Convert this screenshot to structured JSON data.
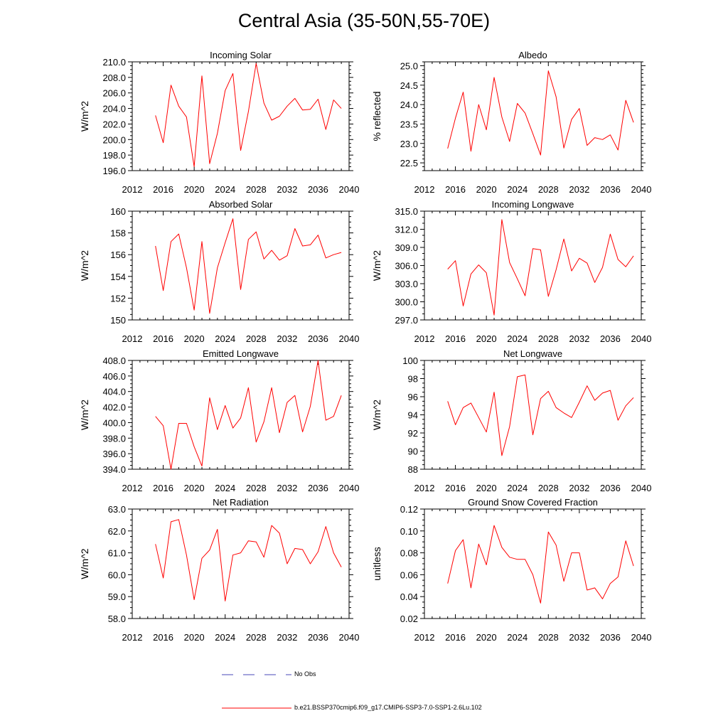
{
  "title": "Central Asia (35-50N,55-70E)",
  "legend": [
    {
      "label": "No Obs",
      "color": "#4a4ab8",
      "style": "dashed"
    },
    {
      "label": "b.e21.BSSP370cmip6.f09_g17.CMIP6-SSP3-7.0-SSP1-2.6Lu.102",
      "color": "#ff0000",
      "style": "solid"
    }
  ],
  "chart_data": [
    {
      "type": "line",
      "title": "Incoming Solar",
      "ylabel": "W/m^2",
      "xlim": [
        2012,
        2040
      ],
      "ylim": [
        196,
        210
      ],
      "xticks": [
        "2012",
        "2016",
        "2020",
        "2024",
        "2028",
        "2032",
        "2036",
        "2040"
      ],
      "xtick_values": [
        2012,
        2016,
        2020,
        2024,
        2028,
        2032,
        2036,
        2040
      ],
      "yticks": [
        "196.0",
        "198.0",
        "200.0",
        "202.0",
        "204.0",
        "206.0",
        "208.0",
        "210.0"
      ],
      "ytick_values": [
        196,
        198,
        200,
        202,
        204,
        206,
        208,
        210
      ],
      "ymajor_step": 2,
      "yminor_step": 0.5,
      "x": [
        2015,
        2016,
        2017,
        2018,
        2019,
        2020,
        2021,
        2022,
        2023,
        2024,
        2025,
        2026,
        2027,
        2028,
        2029,
        2030,
        2031,
        2032,
        2033,
        2034,
        2035,
        2036,
        2037,
        2038,
        2039
      ],
      "series": [
        {
          "name": "b.e21.BSSP370cmip6.f09_g17.CMIP6-SSP3-7.0-SSP1-2.6Lu.102",
          "color": "#ff0000",
          "values": [
            203.1,
            199.6,
            207.0,
            204.3,
            202.9,
            196.5,
            208.2,
            196.9,
            200.8,
            206.3,
            208.5,
            198.6,
            203.6,
            209.8,
            204.7,
            202.5,
            203.0,
            204.3,
            205.3,
            203.8,
            203.9,
            205.2,
            201.3,
            205.1,
            204.0
          ]
        }
      ]
    },
    {
      "type": "line",
      "title": "Albedo",
      "ylabel": "% reflected",
      "xlim": [
        2012,
        2040
      ],
      "ylim": [
        22.3,
        25.1
      ],
      "xticks": [
        "2012",
        "2016",
        "2020",
        "2024",
        "2028",
        "2032",
        "2036",
        "2040"
      ],
      "xtick_values": [
        2012,
        2016,
        2020,
        2024,
        2028,
        2032,
        2036,
        2040
      ],
      "yticks": [
        "22.5",
        "23.0",
        "23.5",
        "24.0",
        "24.5",
        "25.0"
      ],
      "ytick_values": [
        22.5,
        23.0,
        23.5,
        24.0,
        24.5,
        25.0
      ],
      "ymajor_step": 0.5,
      "yminor_step": 0.1,
      "x": [
        2015,
        2016,
        2017,
        2018,
        2019,
        2020,
        2021,
        2022,
        2023,
        2024,
        2025,
        2026,
        2027,
        2028,
        2029,
        2030,
        2031,
        2032,
        2033,
        2034,
        2035,
        2036,
        2037,
        2038,
        2039
      ],
      "series": [
        {
          "name": "b.e21.BSSP370cmip6.f09_g17.CMIP6-SSP3-7.0-SSP1-2.6Lu.102",
          "color": "#ff0000",
          "values": [
            22.87,
            23.65,
            24.32,
            22.8,
            24.0,
            23.35,
            24.7,
            23.68,
            23.05,
            24.03,
            23.78,
            23.25,
            22.7,
            24.87,
            24.2,
            22.88,
            23.62,
            23.9,
            22.95,
            23.15,
            23.1,
            23.22,
            22.83,
            24.11,
            23.54
          ]
        }
      ]
    },
    {
      "type": "line",
      "title": "Absorbed Solar",
      "ylabel": "W/m^2",
      "xlim": [
        2012,
        2040
      ],
      "ylim": [
        150,
        160
      ],
      "xticks": [
        "2012",
        "2016",
        "2020",
        "2024",
        "2028",
        "2032",
        "2036",
        "2040"
      ],
      "xtick_values": [
        2012,
        2016,
        2020,
        2024,
        2028,
        2032,
        2036,
        2040
      ],
      "yticks": [
        "150",
        "152",
        "154",
        "156",
        "158",
        "160"
      ],
      "ytick_values": [
        150,
        152,
        154,
        156,
        158,
        160
      ],
      "ymajor_step": 2,
      "yminor_step": 0.5,
      "x": [
        2015,
        2016,
        2017,
        2018,
        2019,
        2020,
        2021,
        2022,
        2023,
        2024,
        2025,
        2026,
        2027,
        2028,
        2029,
        2030,
        2031,
        2032,
        2033,
        2034,
        2035,
        2036,
        2037,
        2038,
        2039
      ],
      "series": [
        {
          "name": "b.e21.BSSP370cmip6.f09_g17.CMIP6-SSP3-7.0-SSP1-2.6Lu.102",
          "color": "#ff0000",
          "values": [
            156.8,
            152.7,
            157.2,
            157.9,
            154.8,
            150.9,
            157.2,
            150.6,
            154.8,
            157.1,
            159.3,
            152.8,
            157.4,
            158.1,
            155.6,
            156.4,
            155.5,
            155.9,
            158.4,
            156.8,
            156.9,
            157.8,
            155.7,
            156.0,
            156.2
          ]
        }
      ]
    },
    {
      "type": "line",
      "title": "Incoming Longwave",
      "ylabel": "W/m^2",
      "xlim": [
        2012,
        2040
      ],
      "ylim": [
        297,
        315
      ],
      "xticks": [
        "2012",
        "2016",
        "2020",
        "2024",
        "2028",
        "2032",
        "2036",
        "2040"
      ],
      "xtick_values": [
        2012,
        2016,
        2020,
        2024,
        2028,
        2032,
        2036,
        2040
      ],
      "yticks": [
        "297.0",
        "300.0",
        "303.0",
        "306.0",
        "309.0",
        "312.0",
        "315.0"
      ],
      "ytick_values": [
        297,
        300,
        303,
        306,
        309,
        312,
        315
      ],
      "ymajor_step": 3,
      "yminor_step": 1,
      "x": [
        2015,
        2016,
        2017,
        2018,
        2019,
        2020,
        2021,
        2022,
        2023,
        2024,
        2025,
        2026,
        2027,
        2028,
        2029,
        2030,
        2031,
        2032,
        2033,
        2034,
        2035,
        2036,
        2037,
        2038,
        2039
      ],
      "series": [
        {
          "name": "b.e21.BSSP370cmip6.f09_g17.CMIP6-SSP3-7.0-SSP1-2.6Lu.102",
          "color": "#ff0000",
          "values": [
            305.4,
            306.8,
            299.3,
            304.6,
            306.1,
            304.8,
            297.8,
            313.6,
            306.5,
            303.8,
            301.0,
            308.8,
            308.6,
            300.9,
            305.3,
            310.4,
            305.1,
            307.2,
            306.4,
            303.2,
            305.7,
            311.2,
            307.0,
            305.8,
            307.6
          ]
        }
      ]
    },
    {
      "type": "line",
      "title": "Emitted Longwave",
      "ylabel": "W/m^2",
      "xlim": [
        2012,
        2040
      ],
      "ylim": [
        394,
        408
      ],
      "xticks": [
        "2012",
        "2016",
        "2020",
        "2024",
        "2028",
        "2032",
        "2036",
        "2040"
      ],
      "xtick_values": [
        2012,
        2016,
        2020,
        2024,
        2028,
        2032,
        2036,
        2040
      ],
      "yticks": [
        "394.0",
        "396.0",
        "398.0",
        "400.0",
        "402.0",
        "404.0",
        "406.0",
        "408.0"
      ],
      "ytick_values": [
        394,
        396,
        398,
        400,
        402,
        404,
        406,
        408
      ],
      "ymajor_step": 2,
      "yminor_step": 0.5,
      "x": [
        2015,
        2016,
        2017,
        2018,
        2019,
        2020,
        2021,
        2022,
        2023,
        2024,
        2025,
        2026,
        2027,
        2028,
        2029,
        2030,
        2031,
        2032,
        2033,
        2034,
        2035,
        2036,
        2037,
        2038,
        2039
      ],
      "series": [
        {
          "name": "b.e21.BSSP370cmip6.f09_g17.CMIP6-SSP3-7.0-SSP1-2.6Lu.102",
          "color": "#ff0000",
          "values": [
            400.8,
            399.6,
            394.0,
            399.9,
            399.9,
            396.9,
            394.4,
            403.2,
            399.1,
            402.2,
            399.3,
            400.6,
            404.5,
            397.5,
            400.1,
            404.5,
            398.7,
            402.6,
            403.5,
            398.8,
            402.1,
            408.0,
            400.3,
            400.8,
            403.5
          ]
        }
      ]
    },
    {
      "type": "line",
      "title": "Net Longwave",
      "ylabel": "W/m^2",
      "xlim": [
        2012,
        2040
      ],
      "ylim": [
        88,
        100
      ],
      "xticks": [
        "2012",
        "2016",
        "2020",
        "2024",
        "2028",
        "2032",
        "2036",
        "2040"
      ],
      "xtick_values": [
        2012,
        2016,
        2020,
        2024,
        2028,
        2032,
        2036,
        2040
      ],
      "yticks": [
        "88",
        "90",
        "92",
        "94",
        "96",
        "98",
        "100"
      ],
      "ytick_values": [
        88,
        90,
        92,
        94,
        96,
        98,
        100
      ],
      "ymajor_step": 2,
      "yminor_step": 0.5,
      "x": [
        2015,
        2016,
        2017,
        2018,
        2019,
        2020,
        2021,
        2022,
        2023,
        2024,
        2025,
        2026,
        2027,
        2028,
        2029,
        2030,
        2031,
        2032,
        2033,
        2034,
        2035,
        2036,
        2037,
        2038,
        2039
      ],
      "series": [
        {
          "name": "b.e21.BSSP370cmip6.f09_g17.CMIP6-SSP3-7.0-SSP1-2.6Lu.102",
          "color": "#ff0000",
          "values": [
            95.5,
            92.9,
            94.8,
            95.3,
            93.7,
            92.1,
            96.5,
            89.5,
            92.7,
            98.2,
            98.4,
            91.8,
            95.8,
            96.6,
            94.8,
            94.2,
            93.7,
            95.4,
            97.2,
            95.6,
            96.4,
            96.7,
            93.4,
            95.0,
            95.9
          ]
        }
      ]
    },
    {
      "type": "line",
      "title": "Net Radiation",
      "ylabel": "W/m^2",
      "xlim": [
        2012,
        2040
      ],
      "ylim": [
        58,
        63
      ],
      "xticks": [
        "2012",
        "2016",
        "2020",
        "2024",
        "2028",
        "2032",
        "2036",
        "2040"
      ],
      "xtick_values": [
        2012,
        2016,
        2020,
        2024,
        2028,
        2032,
        2036,
        2040
      ],
      "yticks": [
        "58.0",
        "59.0",
        "60.0",
        "61.0",
        "62.0",
        "63.0"
      ],
      "ytick_values": [
        58,
        59,
        60,
        61,
        62,
        63
      ],
      "ymajor_step": 1,
      "yminor_step": 0.25,
      "x": [
        2015,
        2016,
        2017,
        2018,
        2019,
        2020,
        2021,
        2022,
        2023,
        2024,
        2025,
        2026,
        2027,
        2028,
        2029,
        2030,
        2031,
        2032,
        2033,
        2034,
        2035,
        2036,
        2037,
        2038,
        2039
      ],
      "series": [
        {
          "name": "b.e21.BSSP370cmip6.f09_g17.CMIP6-SSP3-7.0-SSP1-2.6Lu.102",
          "color": "#ff0000",
          "values": [
            61.4,
            59.85,
            62.42,
            62.52,
            60.9,
            58.86,
            60.75,
            61.13,
            62.07,
            58.8,
            60.9,
            61.0,
            61.55,
            61.5,
            60.8,
            62.25,
            61.9,
            60.5,
            61.2,
            61.15,
            60.5,
            61.05,
            62.2,
            61.0,
            60.35
          ]
        }
      ]
    },
    {
      "type": "line",
      "title": "Ground Snow Covered Fraction",
      "ylabel": "unitless",
      "xlim": [
        2012,
        2040
      ],
      "ylim": [
        0.02,
        0.12
      ],
      "xticks": [
        "2012",
        "2016",
        "2020",
        "2024",
        "2028",
        "2032",
        "2036",
        "2040"
      ],
      "xtick_values": [
        2012,
        2016,
        2020,
        2024,
        2028,
        2032,
        2036,
        2040
      ],
      "yticks": [
        "0.02",
        "0.04",
        "0.06",
        "0.08",
        "0.10",
        "0.12"
      ],
      "ytick_values": [
        0.02,
        0.04,
        0.06,
        0.08,
        0.1,
        0.12
      ],
      "ymajor_step": 0.02,
      "yminor_step": 0.005,
      "x": [
        2015,
        2016,
        2017,
        2018,
        2019,
        2020,
        2021,
        2022,
        2023,
        2024,
        2025,
        2026,
        2027,
        2028,
        2029,
        2030,
        2031,
        2032,
        2033,
        2034,
        2035,
        2036,
        2037,
        2038,
        2039
      ],
      "series": [
        {
          "name": "b.e21.BSSP370cmip6.f09_g17.CMIP6-SSP3-7.0-SSP1-2.6Lu.102",
          "color": "#ff0000",
          "values": [
            0.052,
            0.082,
            0.092,
            0.048,
            0.088,
            0.069,
            0.105,
            0.085,
            0.076,
            0.074,
            0.074,
            0.06,
            0.034,
            0.099,
            0.087,
            0.054,
            0.08,
            0.08,
            0.046,
            0.048,
            0.038,
            0.052,
            0.058,
            0.091,
            0.068
          ]
        }
      ]
    }
  ]
}
